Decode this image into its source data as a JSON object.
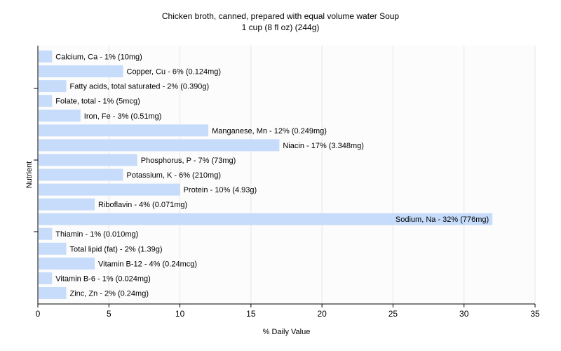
{
  "chart_data": {
    "type": "bar",
    "orientation": "horizontal",
    "title": "Chicken broth, canned, prepared with equal volume water Soup",
    "subtitle": "1 cup (8 fl oz) (244g)",
    "xlabel": "% Daily Value",
    "ylabel": "Nutrient",
    "xlim": [
      0,
      35
    ],
    "xticks": [
      0,
      5,
      10,
      15,
      20,
      25,
      30,
      35
    ],
    "grid": true,
    "bar_color": "#c6dcfa",
    "categories": [
      "Calcium, Ca",
      "Copper, Cu",
      "Fatty acids, total saturated",
      "Folate, total",
      "Iron, Fe",
      "Manganese, Mn",
      "Niacin",
      "Phosphorus, P",
      "Potassium, K",
      "Protein",
      "Riboflavin",
      "Sodium, Na",
      "Thiamin",
      "Total lipid (fat)",
      "Vitamin B-12",
      "Vitamin B-6",
      "Zinc, Zn"
    ],
    "values": [
      1,
      6,
      2,
      1,
      3,
      12,
      17,
      7,
      6,
      10,
      4,
      32,
      1,
      2,
      4,
      1,
      2
    ],
    "labels": [
      "Calcium, Ca - 1% (10mg)",
      "Copper, Cu - 6% (0.124mg)",
      "Fatty acids, total saturated - 2% (0.390g)",
      "Folate, total - 1% (5mcg)",
      "Iron, Fe - 3% (0.51mg)",
      "Manganese, Mn - 12% (0.249mg)",
      "Niacin - 17% (3.348mg)",
      "Phosphorus, P - 7% (73mg)",
      "Potassium, K - 6% (210mg)",
      "Protein - 10% (4.93g)",
      "Riboflavin - 4% (0.071mg)",
      "Sodium, Na - 32% (776mg)",
      "Thiamin - 1% (0.010mg)",
      "Total lipid (fat) - 2% (1.39g)",
      "Vitamin B-12 - 4% (0.24mcg)",
      "Vitamin B-6 - 1% (0.024mg)",
      "Zinc, Zn - 2% (0.24mg)"
    ]
  }
}
